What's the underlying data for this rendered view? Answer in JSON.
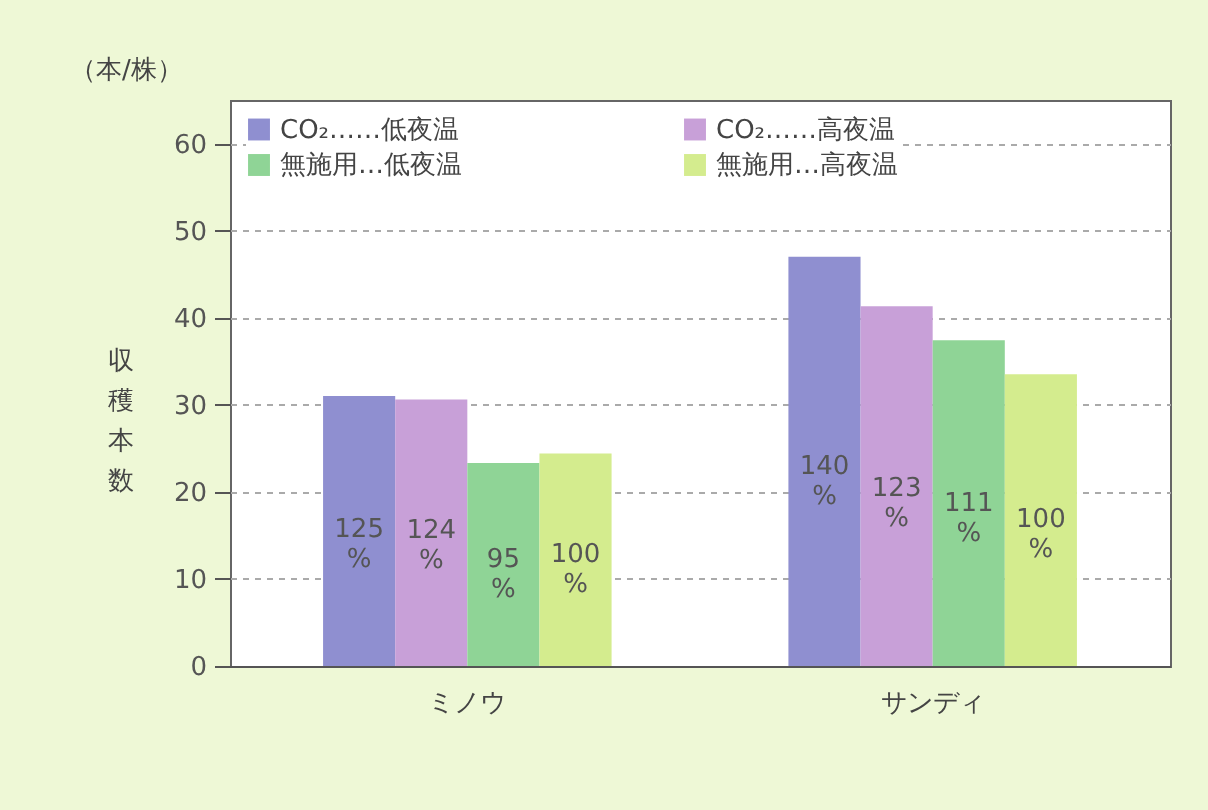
{
  "chart_data": {
    "type": "bar",
    "ylabel": "収穫本数",
    "annotations": [
      "（本/株）",
      "125%",
      "124%",
      "95%",
      "100%",
      "140%",
      "123%",
      "111%",
      "100%"
    ],
    "categories": [
      "ミノウ",
      "サンディ"
    ],
    "series": [
      {
        "name": "CO₂……低夜温",
        "color": "#8f8fd0",
        "values": [
          31,
          47
        ]
      },
      {
        "name": "CO₂……高夜温",
        "color": "#c8a0d8",
        "values": [
          30.6,
          41.3
        ]
      },
      {
        "name": "無施用…低夜温",
        "color": "#8fd496",
        "values": [
          23.3,
          37.4
        ]
      },
      {
        "name": "無施用…高夜温",
        "color": "#d4ec8e",
        "values": [
          24.4,
          33.5
        ]
      }
    ],
    "ylim": [
      0,
      65
    ],
    "yticks": [
      0,
      10,
      20,
      30,
      40,
      50,
      60
    ],
    "grid": "y",
    "legend": "top"
  }
}
